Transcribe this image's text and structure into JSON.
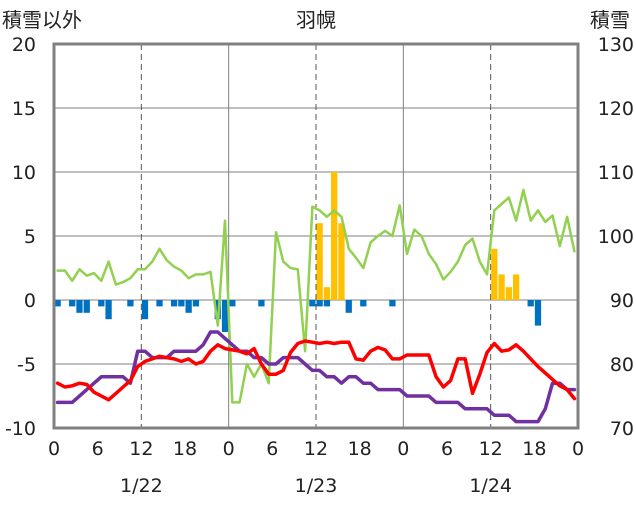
{
  "chart_data": {
    "type": "line",
    "title": "羽幌",
    "left_axis_label": "積雪以外",
    "right_axis_label": "積雪",
    "left_ylim": [
      -10,
      20
    ],
    "left_ticks": [
      "20",
      "15",
      "10",
      "5",
      "0",
      "-5",
      "-10"
    ],
    "right_ylim": [
      70,
      130
    ],
    "right_ticks": [
      "130",
      "120",
      "110",
      "100",
      "90",
      "80",
      "70"
    ],
    "hour_ticks": [
      "0",
      "6",
      "12",
      "18",
      "0",
      "6",
      "12",
      "18",
      "0",
      "6",
      "12",
      "18",
      "0"
    ],
    "date_labels": [
      "1/22",
      "1/23",
      "1/24"
    ],
    "grid": true,
    "colors": {
      "precip": "#FFC000",
      "wind_bar": "#0070C0",
      "temperature": "#FF0000",
      "snow_depth": "#7030A0",
      "series_green": "#92D050"
    },
    "precip_bars": {
      "x": [
        36,
        37,
        38,
        39,
        60,
        61,
        62,
        63
      ],
      "values": [
        6,
        1,
        10,
        6,
        4,
        2,
        1,
        2
      ]
    },
    "blue_bars": {
      "x": [
        0,
        2,
        3,
        4,
        6,
        7,
        10,
        12,
        14,
        16,
        17,
        18,
        19,
        22,
        23,
        24,
        28,
        35,
        36,
        37,
        40,
        42,
        46,
        65,
        66
      ],
      "values": [
        -0.5,
        -0.5,
        -1,
        -1,
        -0.5,
        -1.5,
        -0.5,
        -1.5,
        -0.5,
        -0.5,
        -0.5,
        -1,
        -0.5,
        -1.5,
        -2.5,
        -0.5,
        -0.5,
        -0.5,
        -0.5,
        -0.5,
        -1,
        -0.5,
        -0.5,
        -0.5,
        -2
      ]
    },
    "temperature": {
      "x": [
        0,
        1,
        2,
        3,
        4,
        5,
        6,
        7,
        8,
        9,
        10,
        11,
        12,
        13,
        14,
        15,
        16,
        17,
        18,
        19,
        20,
        21,
        22,
        23,
        24,
        25,
        26,
        27,
        28,
        29,
        30,
        31,
        32,
        33,
        34,
        35,
        36,
        37,
        38,
        39,
        40,
        41,
        42,
        43,
        44,
        45,
        46,
        47,
        48,
        49,
        50,
        51,
        52,
        53,
        54,
        55,
        56,
        57,
        58,
        59,
        60,
        61,
        62,
        63,
        64,
        65,
        66,
        67,
        68,
        69,
        70,
        71
      ],
      "values": [
        -6.5,
        -6.8,
        -6.7,
        -6.5,
        -6.6,
        -7.2,
        -7.5,
        -7.8,
        -7.3,
        -6.8,
        -6.3,
        -5.2,
        -4.8,
        -4.6,
        -4.4,
        -4.5,
        -4.6,
        -4.8,
        -4.6,
        -5,
        -4.8,
        -4,
        -3.5,
        -3.8,
        -3.9,
        -4,
        -4.2,
        -3.8,
        -5,
        -5.8,
        -5.8,
        -5.5,
        -4.1,
        -3.4,
        -3.2,
        -3.3,
        -3.4,
        -3.3,
        -3.4,
        -3.3,
        -3.3,
        -4.6,
        -4.7,
        -4,
        -3.7,
        -3.9,
        -4.6,
        -4.6,
        -4.3,
        -4.3,
        -4.3,
        -4.3,
        -6,
        -6.8,
        -6.3,
        -4.6,
        -4.6,
        -7.3,
        -5.8,
        -4.1,
        -3.4,
        -4,
        -3.9,
        -3.5,
        -4,
        -4.6,
        -5.2,
        -5.7,
        -6.2,
        -6.7,
        -7,
        -7.7
      ]
    },
    "snow_depth": {
      "x": [
        0,
        1,
        2,
        3,
        4,
        5,
        6,
        7,
        8,
        9,
        10,
        11,
        12,
        13,
        14,
        15,
        16,
        17,
        18,
        19,
        20,
        21,
        22,
        23,
        24,
        25,
        26,
        27,
        28,
        29,
        30,
        31,
        32,
        33,
        34,
        35,
        36,
        37,
        38,
        39,
        40,
        41,
        42,
        43,
        44,
        45,
        46,
        47,
        48,
        49,
        50,
        51,
        52,
        53,
        54,
        55,
        56,
        57,
        58,
        59,
        60,
        61,
        62,
        63,
        64,
        65,
        66,
        67,
        68,
        69,
        70,
        71
      ],
      "values": [
        74,
        74,
        74,
        75,
        76,
        77,
        78,
        78,
        78,
        78,
        77,
        82,
        82,
        81,
        81,
        81,
        82,
        82,
        82,
        82,
        83,
        85,
        85,
        84,
        83,
        82,
        82,
        81,
        81,
        80,
        80,
        81,
        81,
        81,
        80,
        79,
        79,
        78,
        78,
        77,
        78,
        78,
        77,
        77,
        76,
        76,
        76,
        76,
        75,
        75,
        75,
        75,
        74,
        74,
        74,
        74,
        73,
        73,
        73,
        73,
        72,
        72,
        72,
        71,
        71,
        71,
        71,
        73,
        77,
        77,
        76,
        76
      ]
    },
    "green_line": {
      "x": [
        0,
        1,
        2,
        3,
        4,
        5,
        6,
        7,
        8,
        9,
        10,
        11,
        12,
        13,
        14,
        15,
        16,
        17,
        18,
        19,
        20,
        21,
        22,
        23,
        24,
        25,
        26,
        27,
        28,
        29,
        30,
        31,
        32,
        33,
        34,
        35,
        36,
        37,
        38,
        39,
        40,
        41,
        42,
        43,
        44,
        45,
        46,
        47,
        48,
        49,
        50,
        51,
        52,
        53,
        54,
        55,
        56,
        57,
        58,
        59,
        60,
        61,
        62,
        63,
        64,
        65,
        66,
        67,
        68,
        69,
        70,
        71
      ],
      "values": [
        2.3,
        2.3,
        1.5,
        2.4,
        1.9,
        2.1,
        1.5,
        3,
        1.2,
        1.4,
        1.7,
        2.4,
        2.4,
        3,
        4,
        3.1,
        2.6,
        2.3,
        1.7,
        2,
        2,
        2.2,
        -2,
        6.2,
        -8,
        -8,
        -5,
        -6,
        -5,
        -6.5,
        5.3,
        3,
        2.5,
        2.4,
        -4,
        7.3,
        7,
        6.5,
        7,
        6.5,
        4,
        3.3,
        2.5,
        4.5,
        5,
        5.4,
        5,
        7.4,
        3.6,
        5.5,
        5,
        3.6,
        2.8,
        1.6,
        2.2,
        3,
        4.3,
        4.8,
        3,
        2,
        7,
        7.5,
        8,
        6.2,
        8.6,
        6.2,
        7,
        6.1,
        6.6,
        4.2,
        6.5,
        3.8
      ]
    }
  }
}
